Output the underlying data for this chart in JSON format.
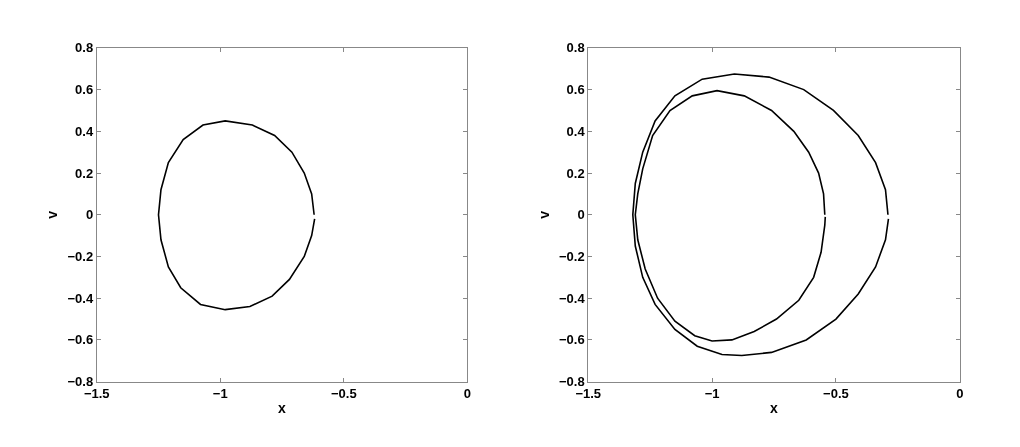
{
  "chart_data": [
    {
      "type": "line",
      "xlabel": "x",
      "ylabel": "v",
      "xlim": [
        -1.5,
        0
      ],
      "xticks": [
        -1.5,
        -1,
        -0.5,
        0
      ],
      "ylim": [
        -0.8,
        0.8
      ],
      "yticks": [
        -0.8,
        -0.6,
        -0.4,
        -0.2,
        0,
        0.2,
        0.4,
        0.6,
        0.8
      ],
      "series": [
        {
          "color": "#000000",
          "x": [
            -0.62,
            -0.63,
            -0.66,
            -0.71,
            -0.78,
            -0.87,
            -0.98,
            -1.07,
            -1.15,
            -1.21,
            -1.24,
            -1.25,
            -1.24,
            -1.21,
            -1.16,
            -1.08,
            -0.98,
            -0.88,
            -0.79,
            -0.72,
            -0.66,
            -0.63,
            -0.618
          ],
          "values": [
            0,
            0.1,
            0.2,
            0.3,
            0.38,
            0.43,
            0.45,
            0.43,
            0.36,
            0.25,
            0.12,
            0,
            -0.12,
            -0.25,
            -0.35,
            -0.43,
            -0.455,
            -0.44,
            -0.39,
            -0.31,
            -0.2,
            -0.1,
            -0.02
          ]
        }
      ]
    },
    {
      "type": "line",
      "xlabel": "x",
      "ylabel": "v",
      "xlim": [
        -1.5,
        0
      ],
      "xticks": [
        -1.5,
        -1,
        -0.5,
        0
      ],
      "ylim": [
        -0.8,
        0.8
      ],
      "yticks": [
        -0.8,
        -0.6,
        -0.4,
        -0.2,
        0,
        0.2,
        0.4,
        0.6,
        0.8
      ],
      "series": [
        {
          "color": "#000000",
          "x": [
            -0.29,
            -0.3,
            -0.34,
            -0.41,
            -0.51,
            -0.63,
            -0.77,
            -0.91,
            -1.04,
            -1.15,
            -1.23,
            -1.28,
            -1.31,
            -1.32,
            -1.31,
            -1.28,
            -1.23,
            -1.15,
            -1.06,
            -0.96,
            -0.88,
            -0.76,
            -0.62,
            -0.5,
            -0.41,
            -0.34,
            -0.3,
            -0.288
          ],
          "values": [
            0,
            0.12,
            0.25,
            0.38,
            0.5,
            0.6,
            0.66,
            0.675,
            0.65,
            0.57,
            0.45,
            0.3,
            0.15,
            0,
            -0.15,
            -0.3,
            -0.43,
            -0.55,
            -0.63,
            -0.67,
            -0.675,
            -0.66,
            -0.6,
            -0.5,
            -0.38,
            -0.25,
            -0.12,
            -0.02
          ]
        },
        {
          "color": "#000000",
          "x": [
            -0.545,
            -0.55,
            -0.57,
            -0.61,
            -0.67,
            -0.76,
            -0.87,
            -0.98,
            -1.08,
            -1.17,
            -1.24,
            -1.28,
            -1.3,
            -1.31,
            -1.3,
            -1.27,
            -1.22,
            -1.15,
            -1.07,
            -1.0,
            -0.92,
            -0.83,
            -0.74,
            -0.65,
            -0.59,
            -0.56,
            -0.545,
            -0.543
          ],
          "values": [
            0,
            0.1,
            0.2,
            0.3,
            0.4,
            0.5,
            0.57,
            0.595,
            0.57,
            0.5,
            0.38,
            0.22,
            0.1,
            0,
            -0.12,
            -0.26,
            -0.4,
            -0.51,
            -0.58,
            -0.605,
            -0.6,
            -0.56,
            -0.5,
            -0.41,
            -0.3,
            -0.18,
            -0.05,
            -0.01
          ]
        }
      ]
    }
  ]
}
